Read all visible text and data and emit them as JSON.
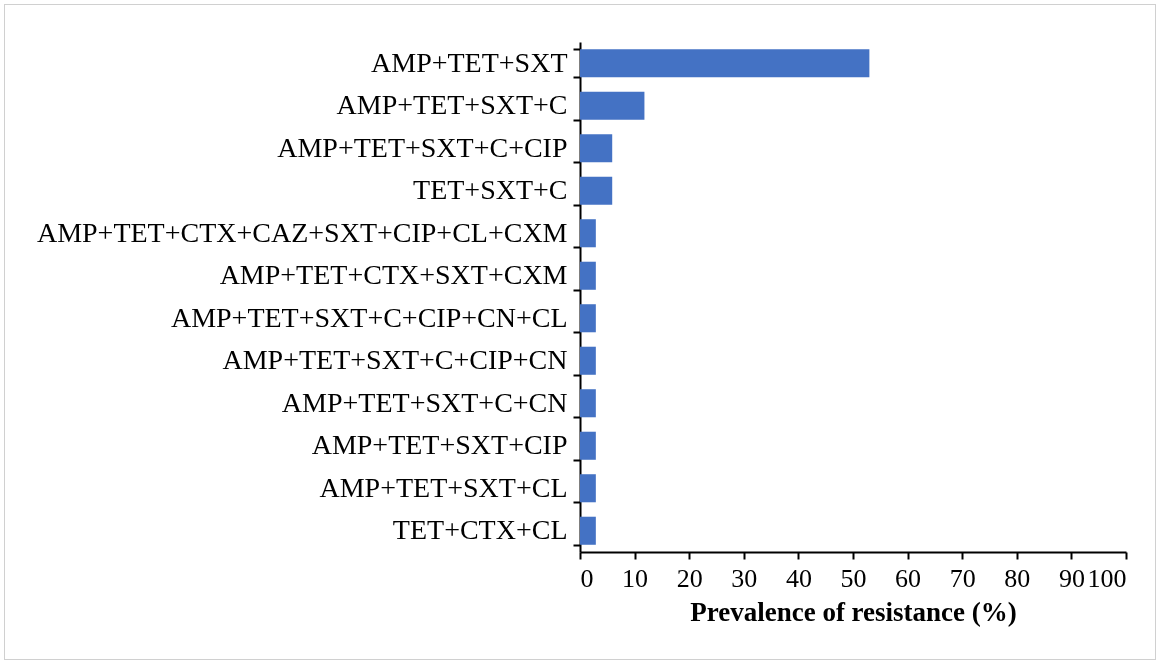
{
  "chart_data": {
    "type": "bar",
    "orientation": "horizontal",
    "xlabel": "Prevalence of resistance (%)",
    "categories": [
      "AMP+TET+SXT",
      "AMP+TET+SXT+C",
      "AMP+TET+SXT+C+CIP",
      "TET+SXT+C",
      "AMP+TET+CTX+CAZ+SXT+CIP+CL+CXM",
      "AMP+TET+CTX+SXT+CXM",
      "AMP+TET+SXT+C+CIP+CN+CL",
      "AMP+TET+SXT+C+CIP+CN",
      "AMP+TET+SXT+C+CN",
      "AMP+TET+SXT+CIP",
      "AMP+TET+SXT+CL",
      "TET+CTX+CL"
    ],
    "values": [
      53,
      11.8,
      5.9,
      5.9,
      2.9,
      2.9,
      2.9,
      2.9,
      2.9,
      2.9,
      2.9,
      2.9
    ],
    "color": "#4472c4",
    "xlim": [
      0,
      100
    ],
    "xticks": [
      0,
      10,
      20,
      30,
      40,
      50,
      60,
      70,
      80,
      90,
      100
    ],
    "grid": false
  }
}
